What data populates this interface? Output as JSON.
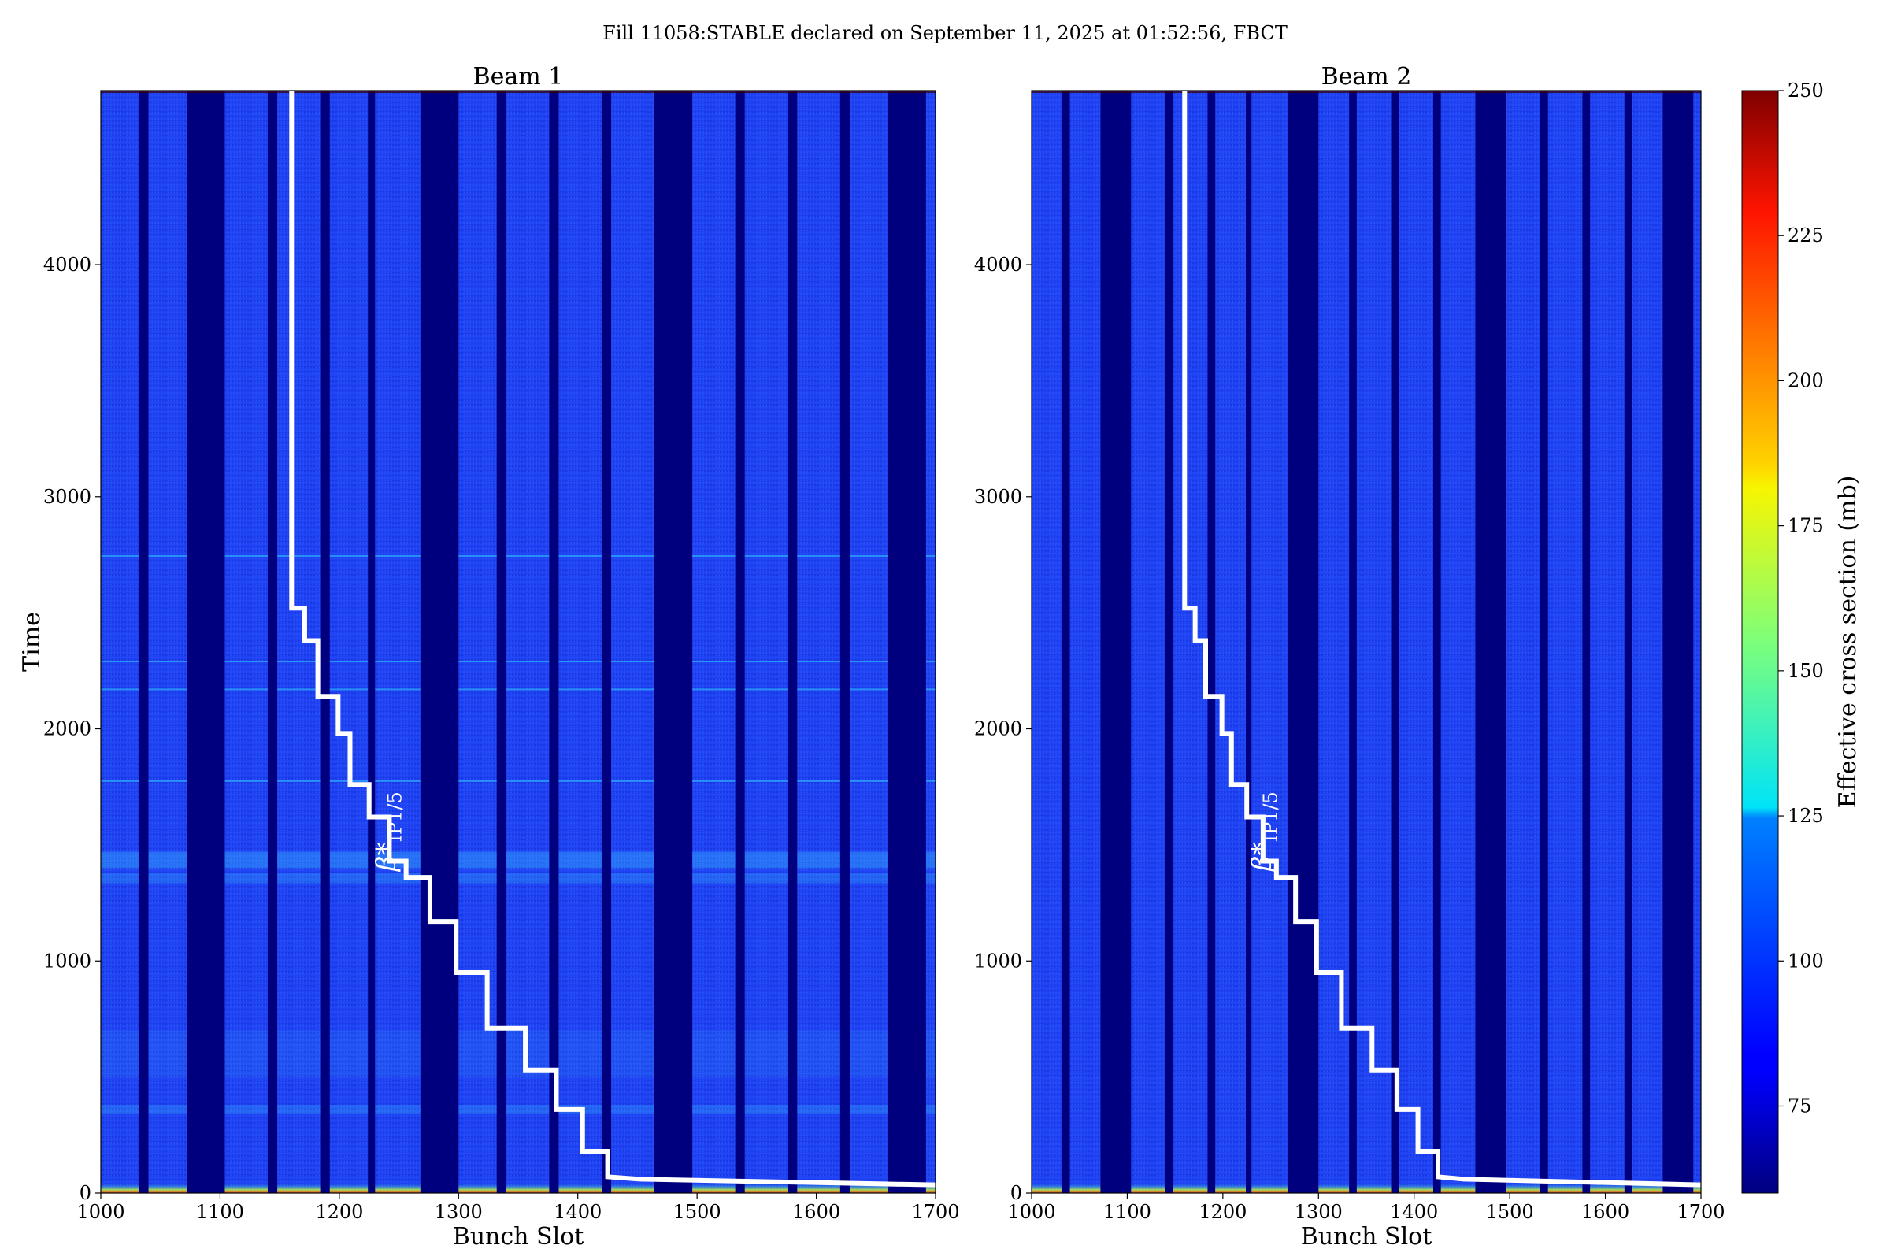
{
  "figure": {
    "suptitle": "Fill 11058:STABLE declared on September 11, 2025 at 01:52:56, FBCT"
  },
  "chart_data": [
    {
      "type": "heatmap",
      "title": "Beam 1",
      "xlabel": "Bunch Slot",
      "ylabel": "Time",
      "xlim": [
        1000,
        1700
      ],
      "ylim": [
        0,
        4750
      ],
      "xticks": [
        1000,
        1100,
        1200,
        1300,
        1400,
        1500,
        1600,
        1700
      ],
      "yticks": [
        0,
        1000,
        2000,
        3000,
        4000
      ],
      "empty_slot_ranges": [
        [
          1032,
          1040
        ],
        [
          1072,
          1104
        ],
        [
          1140,
          1148
        ],
        [
          1184,
          1192
        ],
        [
          1224,
          1230
        ],
        [
          1268,
          1300
        ],
        [
          1332,
          1340
        ],
        [
          1376,
          1384
        ],
        [
          1420,
          1428
        ],
        [
          1464,
          1496
        ],
        [
          1532,
          1540
        ],
        [
          1576,
          1584
        ],
        [
          1620,
          1628
        ],
        [
          1660,
          1692
        ]
      ],
      "cross_section_baseline_mb": 80,
      "overlay_line": {
        "name": "β*_IP1/5",
        "color": "#ffffff",
        "points": [
          [
            1160,
            4750
          ],
          [
            1160,
            2520
          ],
          [
            1171,
            2520
          ],
          [
            1171,
            2380
          ],
          [
            1182,
            2380
          ],
          [
            1182,
            2140
          ],
          [
            1199,
            2140
          ],
          [
            1199,
            1980
          ],
          [
            1209,
            1980
          ],
          [
            1209,
            1760
          ],
          [
            1225,
            1760
          ],
          [
            1225,
            1620
          ],
          [
            1242,
            1620
          ],
          [
            1242,
            1430
          ],
          [
            1256,
            1430
          ],
          [
            1256,
            1360
          ],
          [
            1276,
            1360
          ],
          [
            1276,
            1170
          ],
          [
            1298,
            1170
          ],
          [
            1298,
            950
          ],
          [
            1324,
            950
          ],
          [
            1324,
            710
          ],
          [
            1356,
            710
          ],
          [
            1356,
            530
          ],
          [
            1382,
            530
          ],
          [
            1382,
            360
          ],
          [
            1404,
            360
          ],
          [
            1404,
            180
          ],
          [
            1425,
            180
          ],
          [
            1425,
            70
          ],
          [
            1452,
            60
          ],
          [
            1700,
            35
          ]
        ]
      },
      "annotation": {
        "text": "β*",
        "subscript": "IP1/5",
        "x": 1232,
        "y": 1360
      }
    },
    {
      "type": "heatmap",
      "title": "Beam 2",
      "xlabel": "Bunch Slot",
      "ylabel": "",
      "xlim": [
        1000,
        1700
      ],
      "ylim": [
        0,
        4750
      ],
      "xticks": [
        1000,
        1100,
        1200,
        1300,
        1400,
        1500,
        1600,
        1700
      ],
      "yticks": [
        0,
        1000,
        2000,
        3000,
        4000
      ],
      "empty_slot_ranges": [
        [
          1032,
          1040
        ],
        [
          1072,
          1104
        ],
        [
          1140,
          1148
        ],
        [
          1184,
          1192
        ],
        [
          1224,
          1230
        ],
        [
          1268,
          1300
        ],
        [
          1332,
          1340
        ],
        [
          1376,
          1384
        ],
        [
          1420,
          1428
        ],
        [
          1464,
          1496
        ],
        [
          1532,
          1540
        ],
        [
          1576,
          1584
        ],
        [
          1620,
          1628
        ],
        [
          1660,
          1692
        ]
      ],
      "cross_section_baseline_mb": 80,
      "overlay_line": {
        "name": "β*_IP1/5",
        "color": "#ffffff",
        "points": [
          [
            1160,
            4750
          ],
          [
            1160,
            2520
          ],
          [
            1171,
            2520
          ],
          [
            1171,
            2380
          ],
          [
            1182,
            2380
          ],
          [
            1182,
            2140
          ],
          [
            1199,
            2140
          ],
          [
            1199,
            1980
          ],
          [
            1209,
            1980
          ],
          [
            1209,
            1760
          ],
          [
            1225,
            1760
          ],
          [
            1225,
            1620
          ],
          [
            1242,
            1620
          ],
          [
            1242,
            1430
          ],
          [
            1256,
            1430
          ],
          [
            1256,
            1360
          ],
          [
            1276,
            1360
          ],
          [
            1276,
            1170
          ],
          [
            1298,
            1170
          ],
          [
            1298,
            950
          ],
          [
            1324,
            950
          ],
          [
            1324,
            710
          ],
          [
            1356,
            710
          ],
          [
            1356,
            530
          ],
          [
            1382,
            530
          ],
          [
            1382,
            360
          ],
          [
            1404,
            360
          ],
          [
            1404,
            180
          ],
          [
            1425,
            180
          ],
          [
            1425,
            70
          ],
          [
            1452,
            60
          ],
          [
            1700,
            35
          ]
        ]
      },
      "annotation": {
        "text": "β*",
        "subscript": "IP1/5",
        "x": 1232,
        "y": 1360
      }
    }
  ],
  "colorbar": {
    "label": "Effective cross section (mb)",
    "range": [
      60,
      250
    ],
    "ticks": [
      75,
      100,
      125,
      150,
      175,
      200,
      225,
      250
    ],
    "colormap": "jet"
  }
}
